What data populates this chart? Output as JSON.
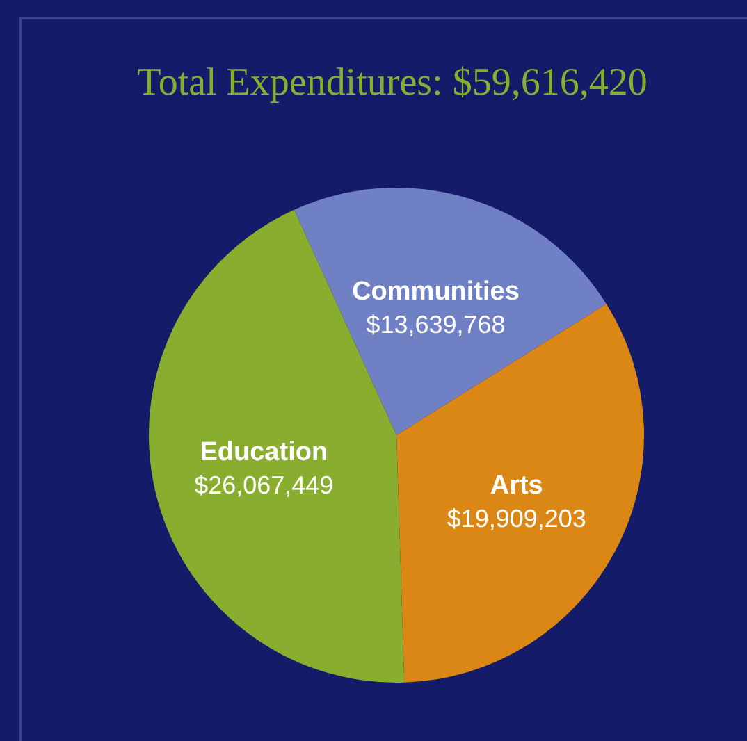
{
  "chart_data": {
    "type": "pie",
    "title": "Total Expenditures: $59,616,420",
    "categories": [
      "Communities",
      "Arts",
      "Education"
    ],
    "values": [
      13639768,
      19909203,
      26067449
    ],
    "value_labels": [
      "$13,639,768",
      "$19,909,203",
      "$26,067,449"
    ],
    "colors": [
      "#6f80c4",
      "#db8716",
      "#89ad2e"
    ]
  }
}
